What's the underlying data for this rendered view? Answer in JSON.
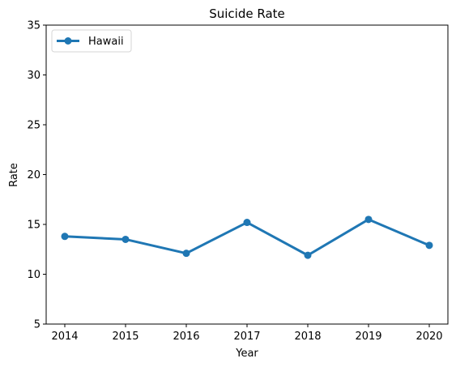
{
  "chart_data": {
    "type": "line",
    "title": "Suicide Rate",
    "xlabel": "Year",
    "ylabel": "Rate",
    "x": [
      2014,
      2015,
      2016,
      2017,
      2018,
      2019,
      2020
    ],
    "series": [
      {
        "name": "Hawaii",
        "values": [
          13.8,
          13.5,
          12.1,
          15.2,
          11.9,
          15.5,
          12.9
        ],
        "color": "#1f77b4"
      }
    ],
    "ylim": [
      5,
      35
    ],
    "yticks": [
      5,
      10,
      15,
      20,
      25,
      30,
      35
    ],
    "xticks": [
      "2014",
      "2015",
      "2016",
      "2017",
      "2018",
      "2019",
      "2020"
    ],
    "grid": false,
    "legend_position": "top-left"
  }
}
